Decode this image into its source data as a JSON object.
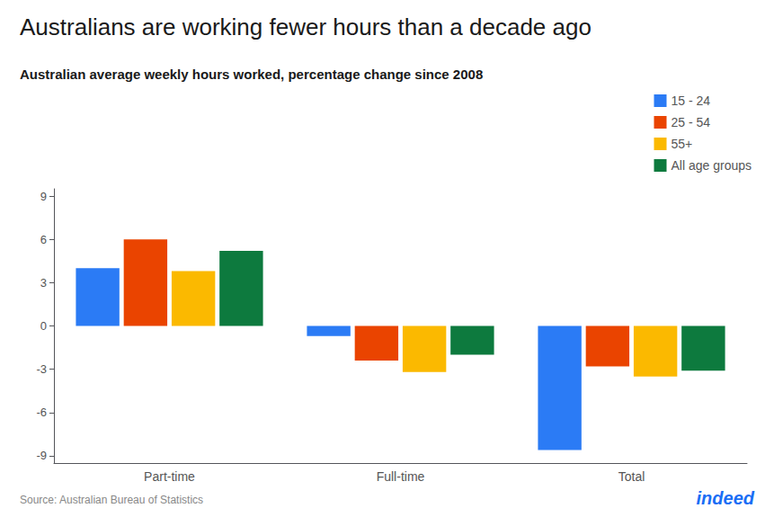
{
  "chart_data": {
    "type": "bar",
    "title": "Australians are working fewer hours than a decade ago",
    "subtitle": "Australian average weekly hours worked, percentage change since 2008",
    "categories": [
      "Part-time",
      "Full-time",
      "Total"
    ],
    "series": [
      {
        "name": "15 - 24",
        "color": "#2B7BF5",
        "values": [
          4.0,
          -0.7,
          -8.6
        ]
      },
      {
        "name": "25 - 54",
        "color": "#EA4400",
        "values": [
          6.0,
          -2.4,
          -2.8
        ]
      },
      {
        "name": "55+",
        "color": "#FBB900",
        "values": [
          3.8,
          -3.2,
          -3.5
        ]
      },
      {
        "name": "All age groups",
        "color": "#0D7A3E",
        "values": [
          5.2,
          -2.0,
          -3.1
        ]
      }
    ],
    "ylim": [
      -9.5,
      9.5
    ],
    "yticks": [
      -9,
      -6,
      -3,
      0,
      3,
      6,
      9
    ],
    "grid": false,
    "legend": "upper right",
    "annotations": [
      "Source: Australian Bureau of Statistics",
      "indeed"
    ]
  }
}
